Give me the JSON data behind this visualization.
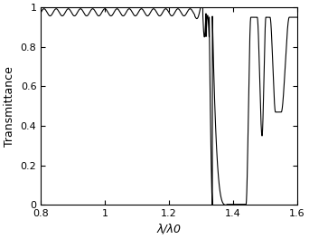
{
  "title": "",
  "xlabel": "λ/λ0",
  "ylabel": "Transmittance",
  "xlim": [
    0.8,
    1.6
  ],
  "ylim": [
    0,
    1.0
  ],
  "xticks": [
    0.8,
    1.0,
    1.2,
    1.4,
    1.6
  ],
  "yticks": [
    0,
    0.2,
    0.4,
    0.6,
    0.8,
    1.0
  ],
  "line_color": "#000000",
  "background_color": "#ffffff",
  "figsize": [
    3.42,
    2.64
  ],
  "dpi": 100
}
